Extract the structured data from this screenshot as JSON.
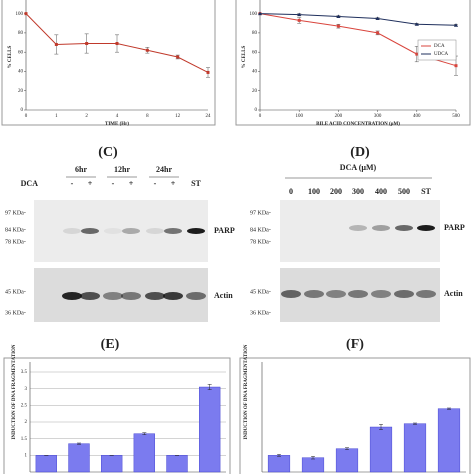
{
  "chart_data": [
    {
      "type": "line",
      "x_label": "TIME (Hr)",
      "y_label": "% CELLS",
      "categories": [
        "0",
        "1",
        "2",
        "4",
        "8",
        "12",
        "24"
      ],
      "series": [
        {
          "color": "#c0392b",
          "values": [
            100,
            68,
            69,
            69,
            62,
            55,
            39
          ],
          "errors": [
            0,
            10,
            10,
            9,
            3,
            2,
            5
          ]
        }
      ],
      "ylim": [
        0,
        110
      ],
      "yticks": [
        0,
        20,
        40,
        60,
        80,
        100
      ]
    },
    {
      "type": "line",
      "x_label": "BILE ACID CONCENTRATION (µM)",
      "y_label": "% CELLS",
      "x": [
        0,
        100,
        200,
        300,
        400,
        500
      ],
      "xlim": [
        0,
        500
      ],
      "xticks": [
        0,
        100,
        200,
        300,
        400,
        500
      ],
      "series": [
        {
          "name": "DCA",
          "color": "#d9453d",
          "values": [
            100,
            93,
            87,
            80,
            58,
            46
          ],
          "errors": [
            0,
            3,
            2,
            2,
            8,
            10
          ]
        },
        {
          "name": "UDCA",
          "color": "#1f2f5c",
          "values": [
            100,
            99,
            97,
            95,
            89,
            88
          ],
          "errors": [
            0,
            1,
            1,
            1,
            1,
            1
          ]
        }
      ],
      "ylim": [
        0,
        110
      ],
      "yticks": [
        0,
        20,
        40,
        60,
        80,
        100
      ],
      "legend": "right"
    },
    {
      "type": "bar",
      "y_label": "INDUCTION OF DNA FRAGMENTATION",
      "categories": [
        null,
        null,
        null,
        null,
        null,
        null
      ],
      "values": [
        1,
        1.35,
        1,
        1.65,
        1,
        3.05
      ],
      "errors": [
        0,
        0.02,
        0,
        0.03,
        0,
        0.08
      ],
      "color": "#7b7bef",
      "ylim": [
        0.5,
        3.5
      ],
      "yticks": [
        1,
        1.5,
        2,
        2.5,
        3,
        3.5
      ],
      "grid": true
    },
    {
      "type": "bar",
      "y_label": "INDUCTION OF DNA FRAGMENTATION",
      "categories": [
        null,
        null,
        null,
        null,
        null,
        null
      ],
      "values": [
        1,
        0.93,
        1.2,
        1.85,
        1.95,
        2.4
      ],
      "errors": [
        0.03,
        0.04,
        0.03,
        0.08,
        0.02,
        0.02
      ],
      "color": "#7b7bef",
      "ylim": [
        0.5,
        3.5
      ]
    }
  ],
  "figure": {
    "panel_labels": [
      "(C)",
      "(D)",
      "(E)",
      "(F)"
    ],
    "blot_left": {
      "times": [
        "6hr",
        "12hr",
        "24hr"
      ],
      "treatment": "DCA",
      "lanes": [
        "-",
        "+",
        "-",
        "+",
        "-",
        "+",
        "ST"
      ],
      "markers": [
        "97 KDa-",
        "84 KDa-",
        "78 KDa-",
        "45 KDa-",
        "36 KDa-"
      ],
      "proteins": [
        "PARP",
        "Actin"
      ]
    },
    "blot_right": {
      "treatment": "DCA (µM)",
      "lanes": [
        "0",
        "100",
        "200",
        "300",
        "400",
        "500",
        "ST"
      ],
      "markers": [
        "97 KDa-",
        "84 KDa-",
        "78 KDa-",
        "45 KDa-",
        "36 KDa-"
      ],
      "proteins": [
        "PARP",
        "Actin"
      ]
    }
  }
}
